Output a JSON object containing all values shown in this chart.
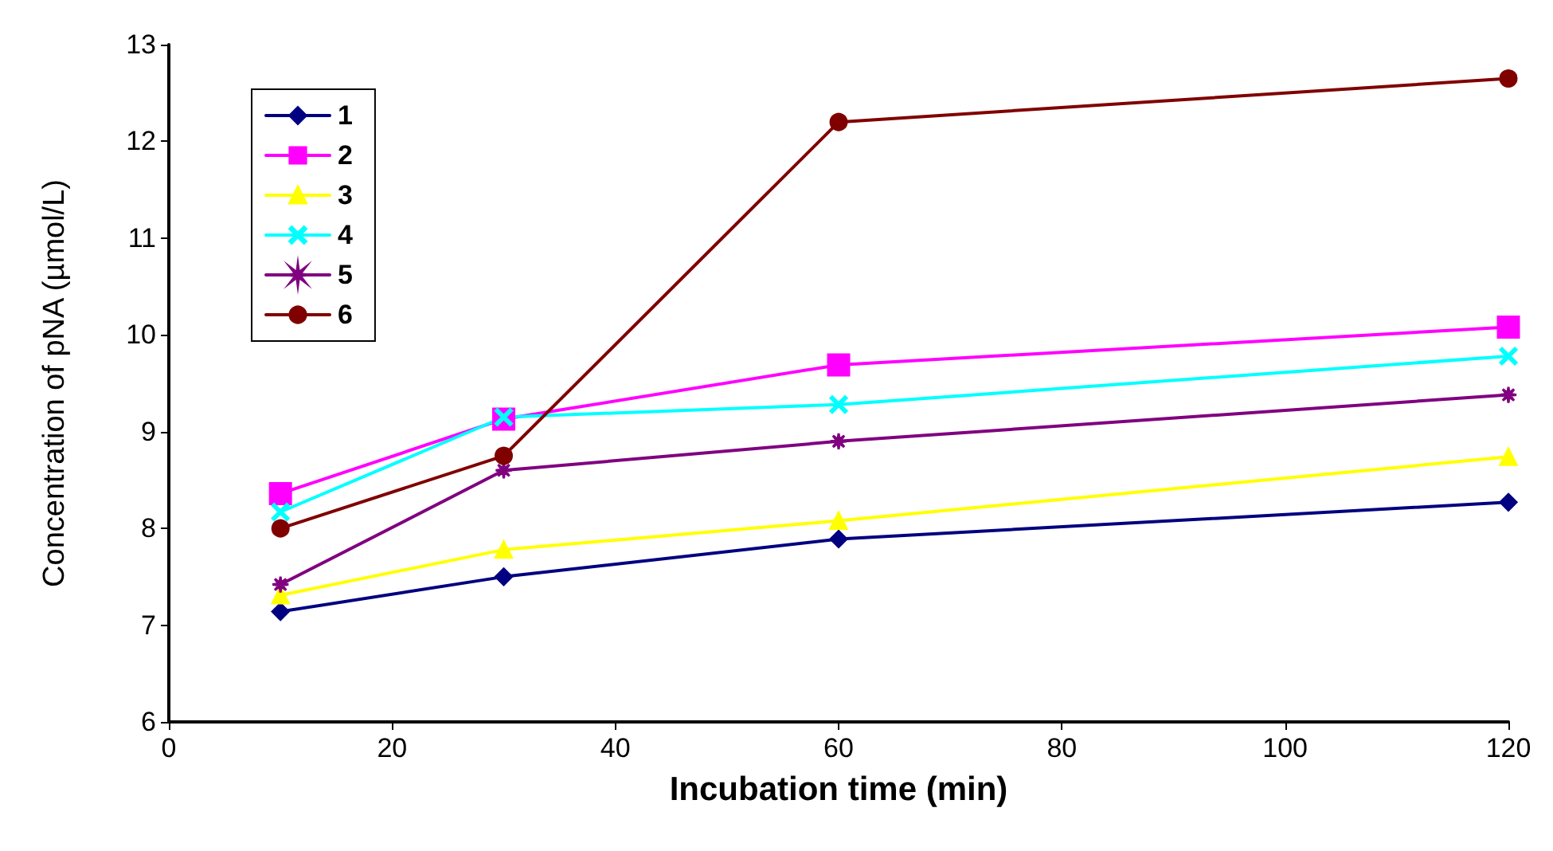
{
  "chart_data": {
    "type": "line",
    "xlabel": "Incubation time (min)",
    "ylabel": "Concentration of pNA (µmol/L)",
    "x": [
      10,
      30,
      60,
      120
    ],
    "xlim": [
      0,
      120
    ],
    "xticks": [
      0,
      20,
      40,
      60,
      80,
      100,
      120
    ],
    "ylim": [
      6,
      13
    ],
    "yticks": [
      6,
      7,
      8,
      9,
      10,
      11,
      12,
      13
    ],
    "grid": false,
    "legend": "top left",
    "series": [
      {
        "name": "1",
        "color": "#000080",
        "marker": "diamond",
        "values": [
          7.14,
          7.5,
          7.89,
          8.27
        ]
      },
      {
        "name": "2",
        "color": "#ff00ff",
        "marker": "square",
        "values": [
          8.36,
          9.13,
          9.69,
          10.08
        ]
      },
      {
        "name": "3",
        "color": "#ffff00",
        "marker": "triangle",
        "values": [
          7.31,
          7.78,
          8.08,
          8.74
        ]
      },
      {
        "name": "4",
        "color": "#00ffff",
        "marker": "cross",
        "values": [
          8.17,
          9.15,
          9.28,
          9.78
        ]
      },
      {
        "name": "5",
        "color": "#800080",
        "marker": "star",
        "values": [
          7.42,
          8.6,
          8.9,
          9.38
        ]
      },
      {
        "name": "6",
        "color": "#800000",
        "marker": "circle",
        "values": [
          8.0,
          8.75,
          12.2,
          12.65
        ]
      }
    ]
  }
}
